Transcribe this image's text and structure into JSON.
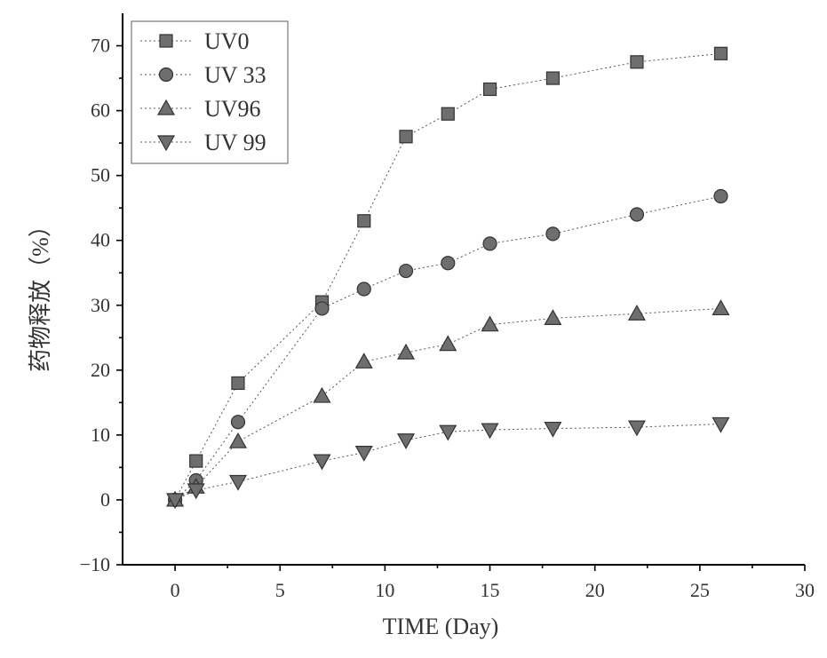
{
  "chart_data": {
    "type": "line",
    "title": "",
    "xlabel": "TIME (Day)",
    "ylabel": "药物释放（%）",
    "xlim": [
      -2.5,
      30
    ],
    "ylim": [
      -10,
      75
    ],
    "xticks": [
      0,
      5,
      10,
      15,
      20,
      25,
      30
    ],
    "yticks": [
      -10,
      0,
      10,
      20,
      30,
      40,
      50,
      60,
      70
    ],
    "legend_position": "top-left",
    "series": [
      {
        "name": "UV0",
        "marker": "square",
        "x": [
          0,
          1,
          3,
          7,
          9,
          11,
          13,
          15,
          18,
          22,
          26
        ],
        "values": [
          0,
          6,
          18,
          30.5,
          43,
          56,
          59.5,
          63.3,
          65,
          67.5,
          68.8
        ]
      },
      {
        "name": "UV 33",
        "marker": "circle",
        "x": [
          0,
          1,
          3,
          7,
          9,
          11,
          13,
          15,
          18,
          22,
          26
        ],
        "values": [
          0,
          3,
          12,
          29.5,
          32.5,
          35.3,
          36.5,
          39.5,
          41,
          44,
          46.8
        ]
      },
      {
        "name": "UV96",
        "marker": "triangle-up",
        "x": [
          0,
          1,
          3,
          7,
          9,
          11,
          13,
          15,
          18,
          22,
          26
        ],
        "values": [
          0,
          2,
          9,
          16,
          21.3,
          22.7,
          24,
          27,
          28,
          28.7,
          29.5
        ]
      },
      {
        "name": "UV 99",
        "marker": "triangle-down",
        "x": [
          0,
          1,
          3,
          7,
          9,
          11,
          13,
          15,
          18,
          22,
          26
        ],
        "values": [
          0,
          1.5,
          2.8,
          6,
          7.3,
          9.2,
          10.5,
          10.8,
          11,
          11.2,
          11.7
        ]
      }
    ]
  }
}
